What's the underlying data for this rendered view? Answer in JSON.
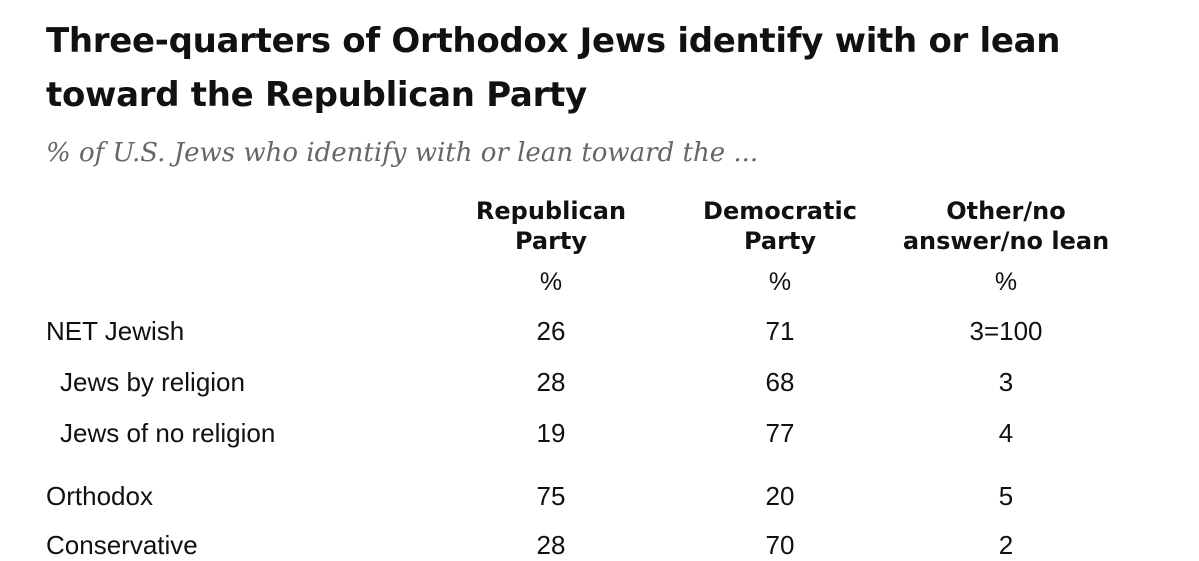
{
  "chart_data": {
    "type": "table",
    "title": "Three-quarters of Orthodox Jews identify with or lean toward the Republican Party",
    "subtitle": "% of U.S. Jews who identify with or lean toward the ...",
    "columns": [
      {
        "line1": "Republican",
        "line2": "Party",
        "unit": "%"
      },
      {
        "line1": "Democratic",
        "line2": "Party",
        "unit": "%"
      },
      {
        "line1": "Other/no",
        "line2": "answer/no lean",
        "unit": "%"
      }
    ],
    "rows": [
      {
        "label": "NET Jewish",
        "values": [
          "26",
          "71",
          "3=100"
        ]
      },
      {
        "label": "Jews by religion",
        "values": [
          "28",
          "68",
          "3"
        ]
      },
      {
        "label": "Jews of no religion",
        "values": [
          "19",
          "77",
          "4"
        ]
      },
      {
        "label": "Orthodox",
        "values": [
          "75",
          "20",
          "5"
        ]
      },
      {
        "label": "Conservative",
        "values": [
          "28",
          "70",
          "2"
        ]
      }
    ]
  }
}
